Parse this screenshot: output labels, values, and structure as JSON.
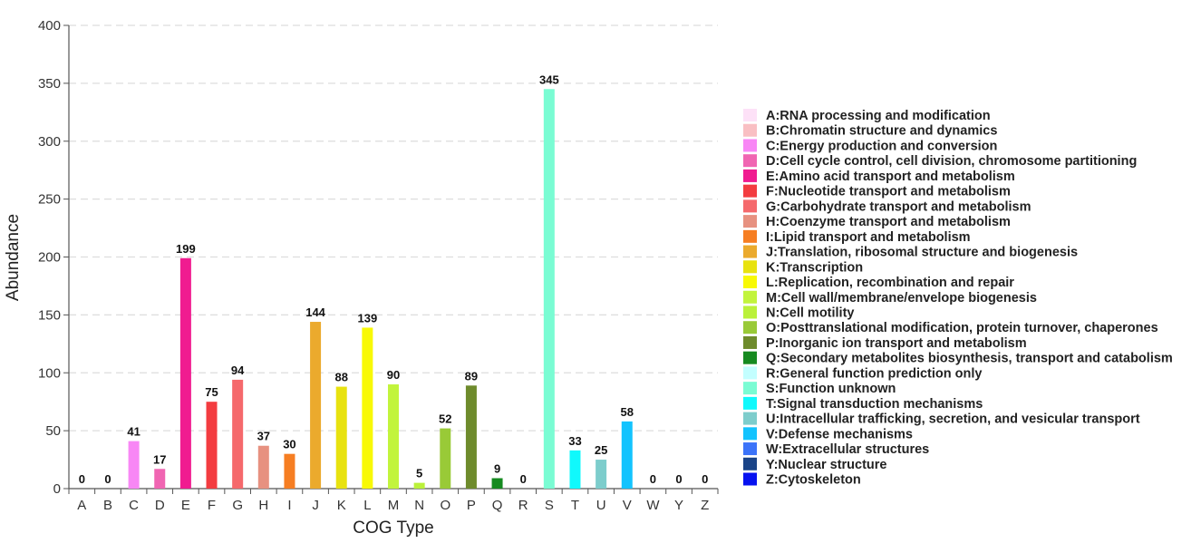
{
  "chart_data": {
    "type": "bar",
    "xlabel": "COG Type",
    "ylabel": "Abundance",
    "ylim": [
      0,
      400
    ],
    "yticks": [
      0,
      50,
      100,
      150,
      200,
      250,
      300,
      350,
      400
    ],
    "grid": true,
    "legend_position": "right",
    "categories": [
      "A",
      "B",
      "C",
      "D",
      "E",
      "F",
      "G",
      "H",
      "I",
      "J",
      "K",
      "L",
      "M",
      "N",
      "O",
      "P",
      "Q",
      "R",
      "S",
      "T",
      "U",
      "V",
      "W",
      "Y",
      "Z"
    ],
    "values": [
      0,
      0,
      41,
      17,
      199,
      75,
      94,
      37,
      30,
      144,
      88,
      139,
      90,
      5,
      52,
      89,
      9,
      0,
      345,
      33,
      25,
      58,
      0,
      0,
      0
    ],
    "value_labels": [
      "0",
      "0",
      "41",
      "17",
      "199",
      "75",
      "94",
      "37",
      "30",
      "144",
      "88",
      "139",
      "90",
      "5",
      "52",
      "89",
      "9",
      "0",
      "345",
      "33",
      "25",
      "58",
      "0",
      "0",
      "0"
    ],
    "colors": [
      "#FDE1F7",
      "#F9BFC3",
      "#F887F5",
      "#F065B2",
      "#F01C90",
      "#F33C40",
      "#F5696C",
      "#E79180",
      "#F67E22",
      "#EBAA2D",
      "#E8E20F",
      "#F8F905",
      "#C2F43C",
      "#BBF13A",
      "#99CA37",
      "#6E8B2C",
      "#168A20",
      "#C3FEFF",
      "#7AFCD3",
      "#10F9FC",
      "#7DCDCC",
      "#13C3FE",
      "#3B73F9",
      "#1A4488",
      "#0712F0"
    ],
    "legend": [
      "A:RNA processing and modification",
      "B:Chromatin structure and dynamics",
      "C:Energy production and conversion",
      "D:Cell cycle control, cell division, chromosome partitioning",
      "E:Amino acid transport and metabolism",
      "F:Nucleotide transport and metabolism",
      "G:Carbohydrate transport and metabolism",
      "H:Coenzyme transport and metabolism",
      "I:Lipid transport and metabolism",
      "J:Translation, ribosomal structure and biogenesis",
      "K:Transcription",
      "L:Replication, recombination and repair",
      "M:Cell wall/membrane/envelope biogenesis",
      "N:Cell motility",
      "O:Posttranslational modification, protein turnover, chaperones",
      "P:Inorganic ion transport and metabolism",
      "Q:Secondary metabolites biosynthesis, transport and catabolism",
      "R:General function prediction only",
      "S:Function unknown",
      "T:Signal transduction mechanisms",
      "U:Intracellular trafficking, secretion, and vesicular transport",
      "V:Defense mechanisms",
      "W:Extracellular structures",
      "Y:Nuclear structure",
      "Z:Cytoskeleton"
    ]
  }
}
